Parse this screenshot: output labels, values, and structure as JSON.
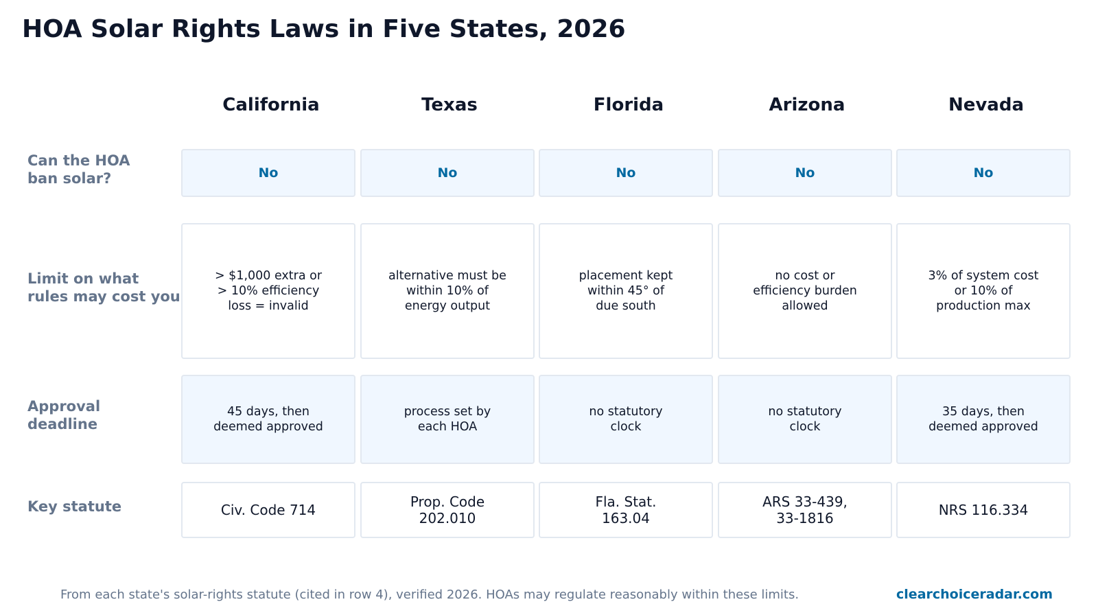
{
  "title": "HOA Solar Rights Laws in Five States, 2026",
  "colors": {
    "title": "#0f172a",
    "row_label": "#64748b",
    "accent": "#0369a1",
    "shaded_cell": "#f0f7ff",
    "cell_border": "#e2e8f0"
  },
  "chart_data": {
    "type": "table",
    "title": "HOA Solar Rights Laws in Five States, 2026",
    "columns": [
      "California",
      "Texas",
      "Florida",
      "Arizona",
      "Nevada"
    ],
    "rows": [
      {
        "label": "Can the HOA\nban solar?",
        "values": [
          "No",
          "No",
          "No",
          "No",
          "No"
        ]
      },
      {
        "label": "Limit on what\nrules may cost you",
        "values": [
          "> $1,000 extra or\n> 10% efficiency\nloss = invalid",
          "alternative must be\nwithin 10% of\nenergy output",
          "placement kept\nwithin 45° of\ndue south",
          "no cost or\nefficiency burden\nallowed",
          "3% of system cost\nor 10% of\nproduction max"
        ]
      },
      {
        "label": "Approval\ndeadline",
        "values": [
          "45 days, then\ndeemed approved",
          "process set by\neach HOA",
          "no statutory\nclock",
          "no statutory\nclock",
          "35 days, then\ndeemed approved"
        ]
      },
      {
        "label": "Key statute",
        "values": [
          "Civ. Code 714",
          "Prop. Code\n202.010",
          "Fla. Stat.\n163.04",
          "ARS 33-439,\n33-1816",
          "NRS 116.334"
        ]
      }
    ]
  },
  "footer": {
    "note": "From each state's solar-rights statute (cited in row 4), verified 2026. HOAs may regulate reasonably within these limits.",
    "brand": "clearchoiceradar.com"
  }
}
